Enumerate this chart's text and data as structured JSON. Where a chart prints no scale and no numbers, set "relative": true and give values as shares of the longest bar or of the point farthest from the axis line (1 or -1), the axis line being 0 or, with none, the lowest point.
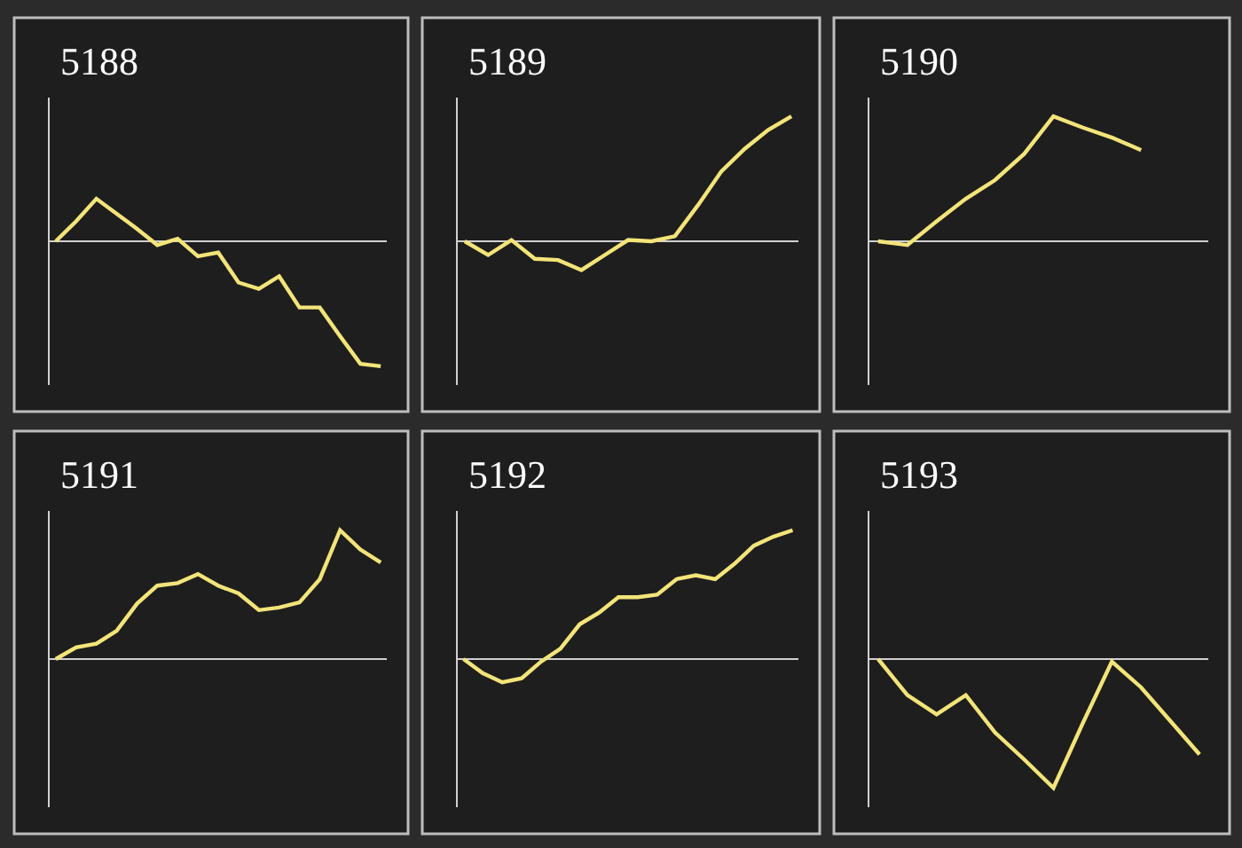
{
  "chart_data": [
    {
      "type": "line",
      "title": "5188",
      "relative": true,
      "color": "#f3e47a",
      "categories": [
        null,
        null,
        null,
        null,
        null,
        null,
        null,
        null,
        null,
        null,
        null,
        null,
        null,
        null,
        null,
        null,
        null
      ],
      "values": [
        0,
        0.16,
        0.34,
        0.22,
        0.1,
        -0.03,
        0.02,
        -0.12,
        -0.09,
        -0.33,
        -0.38,
        -0.28,
        -0.53,
        -0.53,
        -0.76,
        -0.98,
        -1
      ]
    },
    {
      "type": "line",
      "title": "5189",
      "relative": true,
      "color": "#f3e47a",
      "categories": [
        null,
        null,
        null,
        null,
        null,
        null,
        null,
        null,
        null,
        null,
        null,
        null,
        null,
        null,
        null
      ],
      "values": [
        0,
        -0.11,
        0.01,
        -0.14,
        -0.15,
        -0.23,
        -0.11,
        0.01,
        0,
        0.04,
        0.29,
        0.56,
        0.74,
        0.89,
        1
      ]
    },
    {
      "type": "line",
      "title": "5190",
      "relative": true,
      "color": "#f3e47a",
      "categories": [
        null,
        null,
        null,
        null,
        null,
        null,
        null,
        null,
        null,
        null,
        null,
        null
      ],
      "values": [
        0,
        -0.03,
        0.16,
        0.34,
        0.49,
        0.7,
        1,
        0.91,
        0.83,
        0.73,
        null,
        null
      ]
    },
    {
      "type": "line",
      "title": "5191",
      "relative": true,
      "color": "#f3e47a",
      "categories": [
        null,
        null,
        null,
        null,
        null,
        null,
        null,
        null,
        null,
        null,
        null,
        null,
        null,
        null,
        null,
        null,
        null
      ],
      "values": [
        0,
        0.09,
        0.12,
        0.22,
        0.43,
        0.57,
        0.59,
        0.66,
        0.57,
        0.51,
        0.38,
        0.4,
        0.44,
        0.62,
        1,
        0.85,
        0.75
      ]
    },
    {
      "type": "line",
      "title": "5192",
      "relative": true,
      "color": "#f3e47a",
      "categories": [
        null,
        null,
        null,
        null,
        null,
        null,
        null,
        null,
        null,
        null,
        null,
        null,
        null,
        null,
        null,
        null,
        null,
        null
      ],
      "values": [
        0,
        -0.11,
        -0.18,
        -0.15,
        -0.02,
        0.08,
        0.27,
        0.36,
        0.48,
        0.48,
        0.5,
        0.62,
        0.65,
        0.62,
        0.74,
        0.88,
        0.95,
        1
      ]
    },
    {
      "type": "line",
      "title": "5193",
      "relative": true,
      "color": "#f3e47a",
      "categories": [
        null,
        null,
        null,
        null,
        null,
        null,
        null,
        null,
        null,
        null,
        null,
        null
      ],
      "values": [
        0,
        -0.28,
        -0.43,
        -0.28,
        -0.57,
        -0.78,
        -1,
        -0.5,
        -0.02,
        -0.22,
        -0.48,
        -0.74
      ]
    }
  ]
}
